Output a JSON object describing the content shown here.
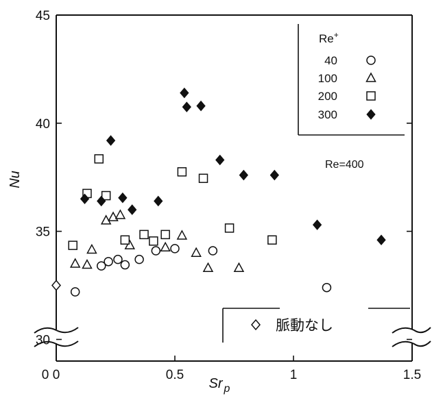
{
  "chart_data": {
    "type": "scatter",
    "title": "",
    "xlabel": "Sr",
    "xlabel_sub": "p",
    "ylabel": "Nu",
    "xlim": [
      0,
      1.5
    ],
    "ylim": [
      29,
      45
    ],
    "x_ticks": [
      {
        "value": 0,
        "label": "0"
      },
      {
        "value": 0.5,
        "label": "0.5"
      },
      {
        "value": 1,
        "label": "1"
      },
      {
        "value": 1.5,
        "label": "1.5"
      }
    ],
    "x_extra_label": "0",
    "y_ticks": [
      {
        "value": 30,
        "label": "30"
      },
      {
        "value": 35,
        "label": "35"
      },
      {
        "value": 40,
        "label": "40"
      },
      {
        "value": 45,
        "label": "45"
      }
    ],
    "grid": false,
    "axis_break": true,
    "legend": {
      "title": "Re",
      "title_sup": "+",
      "placement": "top-right"
    },
    "annotation": "Re=400",
    "inset_legend": {
      "label": "脈動なし",
      "marker": "open-diamond"
    },
    "series": [
      {
        "name": "40",
        "marker": "open-circle",
        "points": [
          {
            "x": 0.08,
            "y": 32.2
          },
          {
            "x": 0.19,
            "y": 33.4
          },
          {
            "x": 0.22,
            "y": 33.6
          },
          {
            "x": 0.26,
            "y": 33.7
          },
          {
            "x": 0.29,
            "y": 33.45
          },
          {
            "x": 0.35,
            "y": 33.7
          },
          {
            "x": 0.42,
            "y": 34.1
          },
          {
            "x": 0.5,
            "y": 34.2
          },
          {
            "x": 0.66,
            "y": 34.1
          },
          {
            "x": 1.14,
            "y": 32.4
          }
        ]
      },
      {
        "name": "100",
        "marker": "open-triangle",
        "points": [
          {
            "x": 0.08,
            "y": 33.5
          },
          {
            "x": 0.13,
            "y": 33.45
          },
          {
            "x": 0.15,
            "y": 34.15
          },
          {
            "x": 0.21,
            "y": 35.5
          },
          {
            "x": 0.24,
            "y": 35.65
          },
          {
            "x": 0.27,
            "y": 35.75
          },
          {
            "x": 0.31,
            "y": 34.35
          },
          {
            "x": 0.46,
            "y": 34.25
          },
          {
            "x": 0.53,
            "y": 34.8
          },
          {
            "x": 0.59,
            "y": 34.0
          },
          {
            "x": 0.64,
            "y": 33.3
          },
          {
            "x": 0.77,
            "y": 33.3
          }
        ]
      },
      {
        "name": "200",
        "marker": "open-square",
        "points": [
          {
            "x": 0.07,
            "y": 34.35
          },
          {
            "x": 0.13,
            "y": 36.75
          },
          {
            "x": 0.18,
            "y": 38.35
          },
          {
            "x": 0.21,
            "y": 36.65
          },
          {
            "x": 0.29,
            "y": 34.6
          },
          {
            "x": 0.37,
            "y": 34.85
          },
          {
            "x": 0.41,
            "y": 34.55
          },
          {
            "x": 0.46,
            "y": 34.85
          },
          {
            "x": 0.53,
            "y": 37.75
          },
          {
            "x": 0.62,
            "y": 37.45
          },
          {
            "x": 0.73,
            "y": 35.15
          },
          {
            "x": 0.91,
            "y": 34.6
          }
        ]
      },
      {
        "name": "300",
        "marker": "filled-diamond",
        "points": [
          {
            "x": 0.12,
            "y": 36.5
          },
          {
            "x": 0.19,
            "y": 36.4
          },
          {
            "x": 0.23,
            "y": 39.2
          },
          {
            "x": 0.28,
            "y": 36.55
          },
          {
            "x": 0.32,
            "y": 36.0
          },
          {
            "x": 0.43,
            "y": 36.4
          },
          {
            "x": 0.54,
            "y": 41.4
          },
          {
            "x": 0.55,
            "y": 40.75
          },
          {
            "x": 0.61,
            "y": 40.8
          },
          {
            "x": 0.69,
            "y": 38.3
          },
          {
            "x": 0.79,
            "y": 37.6
          },
          {
            "x": 0.92,
            "y": 37.6
          },
          {
            "x": 1.1,
            "y": 35.3
          },
          {
            "x": 1.37,
            "y": 34.6
          }
        ]
      },
      {
        "name": "脈動なし",
        "marker": "open-diamond",
        "points": [
          {
            "x": 0.0,
            "y": 32.5
          }
        ]
      }
    ]
  }
}
